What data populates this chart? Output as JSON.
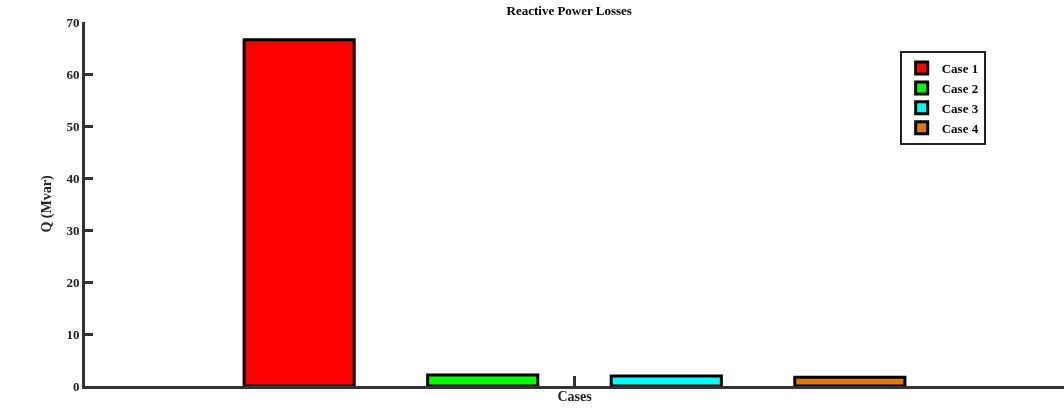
{
  "chart_data": {
    "type": "bar",
    "title": "Reactive Power Losses",
    "xlabel": "Cases",
    "ylabel": "Q (Mvar)",
    "categories": [
      null
    ],
    "series": [
      {
        "name": "Case 1",
        "color": "#ff0000",
        "values": [
          66.6
        ]
      },
      {
        "name": "Case 2",
        "color": "#00ff00",
        "values": [
          2.1
        ]
      },
      {
        "name": "Case 3",
        "color": "#00ffff",
        "values": [
          1.9
        ]
      },
      {
        "name": "Case 4",
        "color": "#e07b00",
        "values": [
          1.7
        ]
      }
    ],
    "ylim": [
      0,
      70
    ],
    "yticks": [
      0,
      10,
      20,
      30,
      40,
      50,
      60,
      70
    ],
    "grid": false,
    "legend": "top right",
    "tick_labels": "y"
  }
}
